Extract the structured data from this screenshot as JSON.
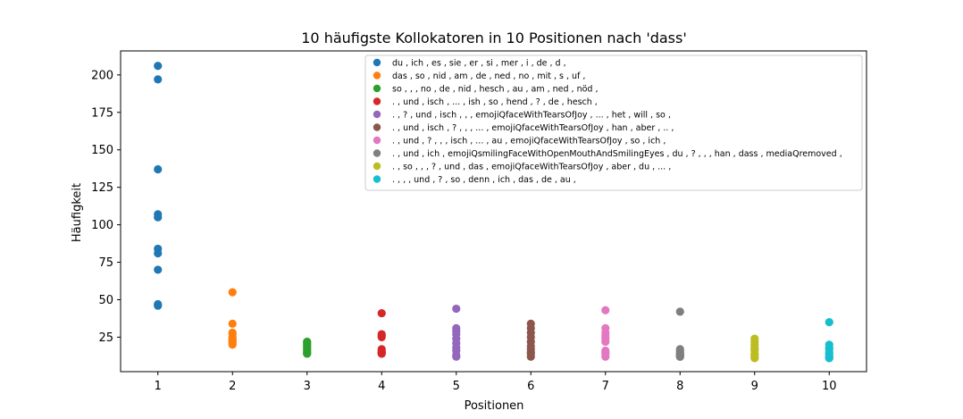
{
  "chart_data": {
    "type": "scatter",
    "title": "10 häufigste Kollokatoren in 10 Positionen nach 'dass'",
    "xlabel": "Positionen",
    "ylabel": "Häufigkeit",
    "xlim": [
      0.5,
      10.5
    ],
    "ylim": [
      2,
      216
    ],
    "xticks": [
      1,
      2,
      3,
      4,
      5,
      6,
      7,
      8,
      9,
      10
    ],
    "yticks": [
      25,
      50,
      75,
      100,
      125,
      150,
      175,
      200
    ],
    "grid": false,
    "legend_position": "upper-right",
    "series": [
      {
        "name": "du , ich , es , sie , er , si , mer , i , de , d ,",
        "color": "#1f77b4",
        "x": 1,
        "values": [
          206,
          197,
          137,
          107,
          105,
          84,
          81,
          70,
          47,
          46
        ]
      },
      {
        "name": "das , so , nid , am , de , ned , no , mit , s , uf ,",
        "color": "#ff7f0e",
        "x": 2,
        "values": [
          55,
          34,
          28,
          27,
          25,
          24,
          23,
          22,
          21,
          20
        ]
      },
      {
        "name": "so , , , no , de , nid , hesch , au , am , ned , nöd ,",
        "color": "#2ca02c",
        "x": 3,
        "values": [
          22,
          21,
          20,
          19,
          18,
          17,
          16,
          15,
          14,
          14
        ]
      },
      {
        "name": ". , und , isch , ... , ish , so , hend , ? , de , hesch ,",
        "color": "#d62728",
        "x": 4,
        "values": [
          41,
          27,
          26,
          25,
          17,
          16,
          15,
          15,
          14,
          14
        ]
      },
      {
        "name": ". , ? , und , isch , , , emojiQfaceWithTearsOfJoy , ... , het , will , so ,",
        "color": "#9467bd",
        "x": 5,
        "values": [
          44,
          31,
          29,
          27,
          24,
          21,
          18,
          16,
          13,
          12
        ]
      },
      {
        "name": ". , und , isch , ? , , , ... , emojiQfaceWithTearsOfJoy , han , aber , .. ,",
        "color": "#8c564b",
        "x": 6,
        "values": [
          34,
          31,
          28,
          25,
          22,
          19,
          17,
          15,
          14,
          12
        ]
      },
      {
        "name": ". , und , ? , , , isch , ... , au , emojiQfaceWithTearsOfJoy , so , ich ,",
        "color": "#e377c2",
        "x": 7,
        "values": [
          43,
          31,
          28,
          26,
          24,
          22,
          16,
          15,
          14,
          12
        ]
      },
      {
        "name": ". , und , ich , emojiQsmilingFaceWithOpenMouthAndSmilingEyes , du , ? , , , han , dass , mediaQremoved ,",
        "color": "#7f7f7f",
        "x": 8,
        "values": [
          42,
          17,
          16,
          15,
          14,
          14,
          13,
          13,
          12,
          12
        ]
      },
      {
        "name": ". , so , , , ? , und , das , emojiQfaceWithTearsOfJoy , aber , du , ... ,",
        "color": "#bcbd22",
        "x": 9,
        "values": [
          24,
          22,
          20,
          18,
          17,
          16,
          14,
          13,
          12,
          11
        ]
      },
      {
        "name": ". , , , und , ? , so , denn , ich , das , de , au ,",
        "color": "#17becf",
        "x": 10,
        "values": [
          35,
          20,
          18,
          17,
          15,
          14,
          13,
          12,
          11,
          11
        ]
      }
    ]
  }
}
